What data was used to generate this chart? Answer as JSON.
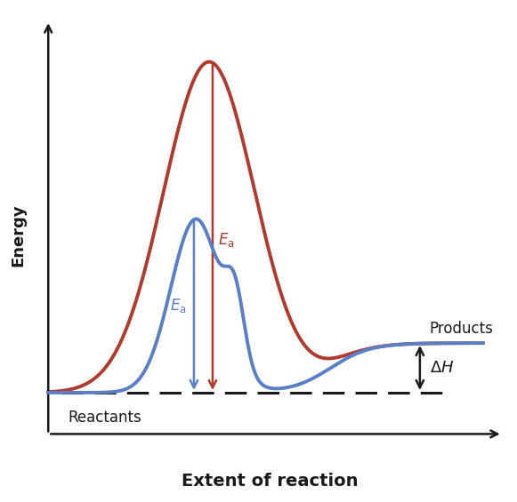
{
  "title": "",
  "xlabel": "Extent of reaction",
  "ylabel": "Energy",
  "background_color": "#ffffff",
  "reactant_level": 0.1,
  "product_level": 0.22,
  "red_color": "#b03a2e",
  "blue_color": "#5b7fc7",
  "black_color": "#1a1a1a",
  "line_width": 2.8,
  "xlabel_fontsize": 14,
  "ylabel_fontsize": 13,
  "label_fontsize": 12
}
